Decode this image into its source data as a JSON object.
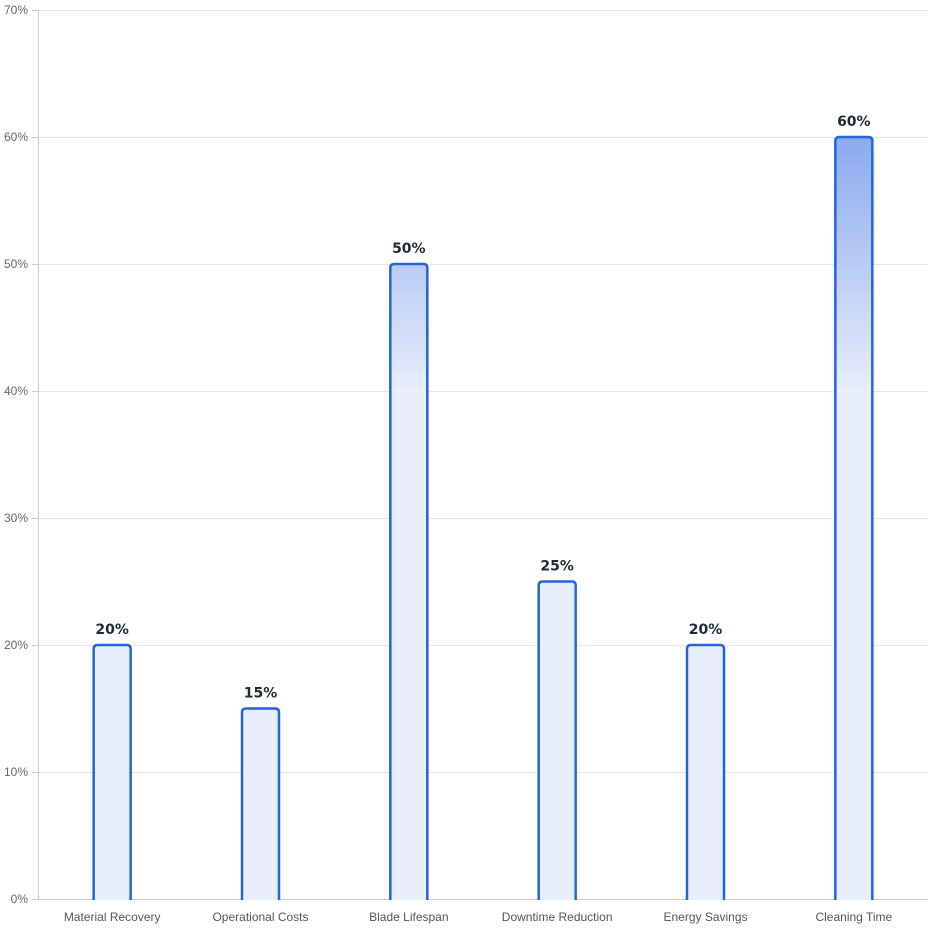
{
  "chart_data": {
    "type": "bar",
    "categories": [
      "Material Recovery",
      "Operational Costs",
      "Blade Lifespan",
      "Downtime Reduction",
      "Energy Savings",
      "Cleaning Time"
    ],
    "values": [
      20,
      15,
      50,
      25,
      20,
      60
    ],
    "value_labels": [
      "20%",
      "15%",
      "50%",
      "25%",
      "20%",
      "60%"
    ],
    "title": "",
    "xlabel": "",
    "ylabel": "",
    "ylim": [
      0,
      70
    ],
    "y_ticks": [
      0,
      10,
      20,
      30,
      40,
      50,
      60,
      70
    ],
    "y_tick_labels": [
      "0%",
      "10%",
      "20%",
      "30%",
      "40%",
      "50%",
      "60%",
      "70%"
    ],
    "grid": true,
    "legend": "none",
    "colors": {
      "bar_stroke": "#2563d9",
      "bar_fill_light": "#e8eefc",
      "bar_fill_dark": "#8aa9f0",
      "grid": "#e6e6e6",
      "axis": "#cccccc"
    }
  }
}
